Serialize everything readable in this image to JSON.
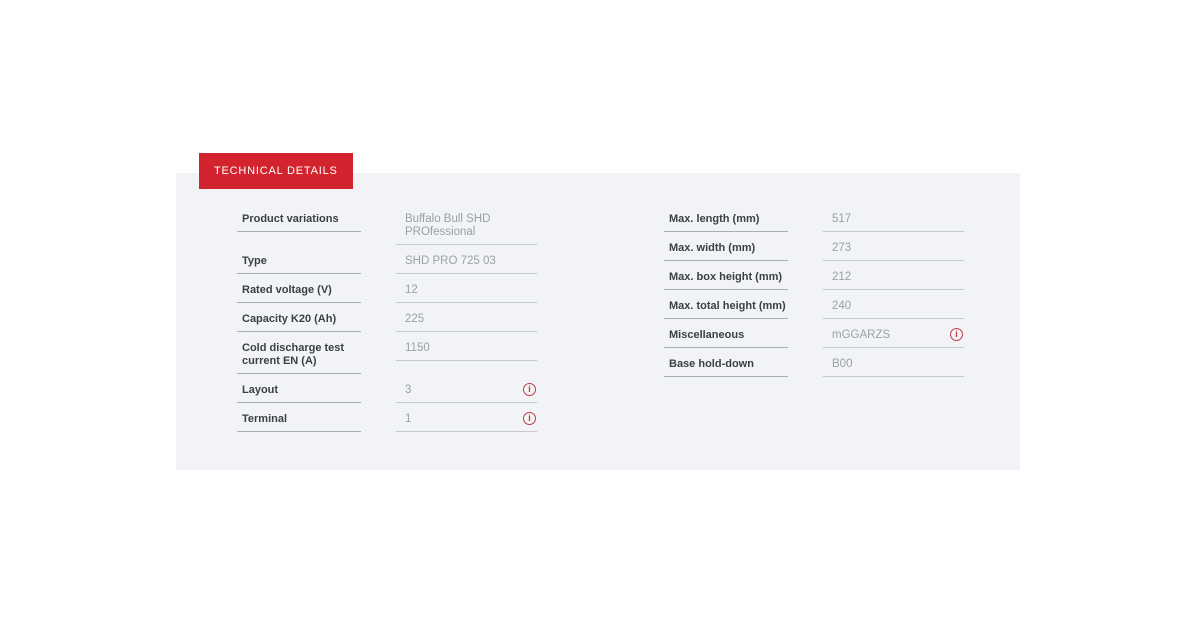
{
  "colors": {
    "accent_red": "#d2232e",
    "panel_bg": "#f2f3f6",
    "label_color": "#3c4043",
    "value_color": "#9aa0a7",
    "info_red": "#c23a44"
  },
  "panel": {
    "header": "TECHNICAL DETAILS",
    "info_icon_glyph": "i"
  },
  "columns": {
    "left": [
      {
        "label": "Product variations",
        "value": "Buffalo Bull SHD PROfessional",
        "info": false
      },
      {
        "label": "Type",
        "value": "SHD PRO 725 03",
        "info": false
      },
      {
        "label": "Rated voltage (V)",
        "value": "12",
        "info": false
      },
      {
        "label": "Capacity K20 (Ah)",
        "value": "225",
        "info": false
      },
      {
        "label": "Cold discharge test current EN (A)",
        "value": "1150",
        "info": false
      },
      {
        "label": "Layout",
        "value": "3",
        "info": true
      },
      {
        "label": "Terminal",
        "value": "1",
        "info": true
      }
    ],
    "right": [
      {
        "label": "Max. length (mm)",
        "value": "517",
        "info": false
      },
      {
        "label": "Max. width (mm)",
        "value": "273",
        "info": false
      },
      {
        "label": "Max. box height (mm)",
        "value": "212",
        "info": false
      },
      {
        "label": "Max. total height (mm)",
        "value": "240",
        "info": false
      },
      {
        "label": "Miscellaneous",
        "value": "mGGARZS",
        "info": true
      },
      {
        "label": "Base hold-down",
        "value": "B00",
        "info": false
      }
    ]
  }
}
